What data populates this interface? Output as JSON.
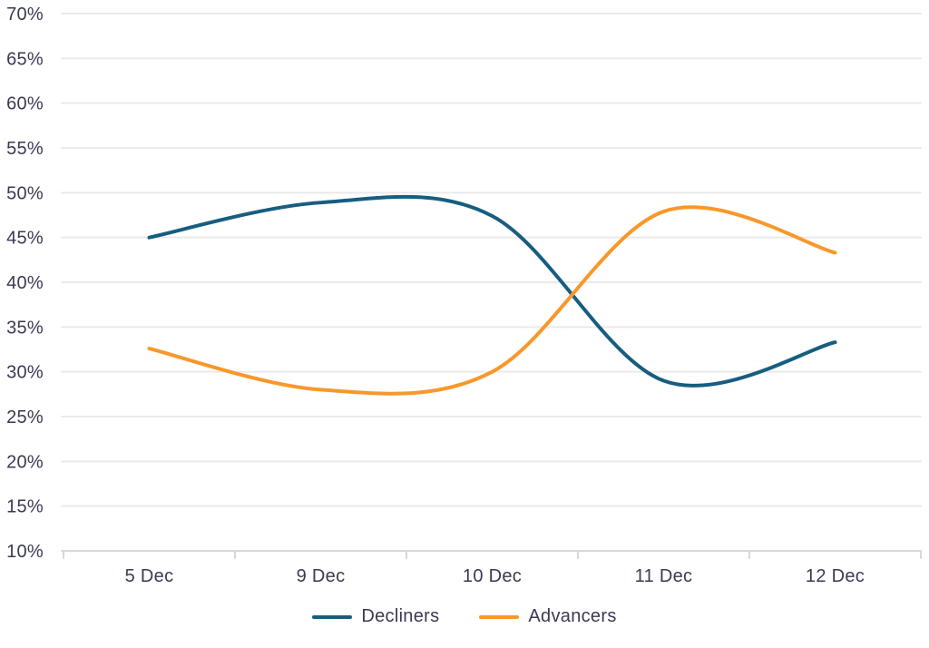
{
  "chart_data": {
    "type": "line",
    "categories": [
      "5 Dec",
      "9 Dec",
      "10 Dec",
      "11 Dec",
      "12 Dec"
    ],
    "series": [
      {
        "name": "Decliners",
        "color": "#175D80",
        "values": [
          45.0,
          48.9,
          47.4,
          29.0,
          33.3
        ]
      },
      {
        "name": "Advancers",
        "color": "#F8982A",
        "values": [
          32.6,
          28.0,
          30.0,
          47.9,
          43.3
        ]
      }
    ],
    "title": "",
    "xlabel": "",
    "ylabel": "",
    "ylim": [
      10,
      70
    ],
    "ytick_step": 5,
    "ytick_labels": [
      "10%",
      "15%",
      "20%",
      "25%",
      "30%",
      "35%",
      "40%",
      "45%",
      "50%",
      "55%",
      "60%",
      "65%",
      "70%"
    ],
    "grid": true,
    "legend_position": "bottom",
    "smoothing": "spline"
  },
  "style": {
    "gridline_color": "#EAEAEA",
    "axis_color": "#D8D8D8",
    "label_color": "#3A3A52",
    "line_width": 4
  }
}
